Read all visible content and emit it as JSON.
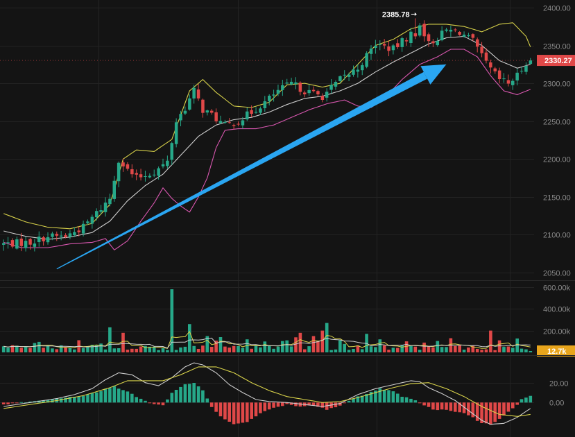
{
  "chart_data": [
    {
      "type": "candlestick",
      "pane": "price",
      "ylim": [
        2040,
        2410
      ],
      "yticks": [
        "2050.00",
        "2100.00",
        "2150.00",
        "2200.00",
        "2250.00",
        "2300.00",
        "2350.00",
        "2400.00"
      ],
      "yticks_values": [
        2050,
        2100,
        2150,
        2200,
        2250,
        2300,
        2350,
        2400
      ],
      "x_count": 120,
      "anchors_close": [
        [
          0,
          2088
        ],
        [
          6,
          2090
        ],
        [
          10,
          2098
        ],
        [
          14,
          2098
        ],
        [
          18,
          2110
        ],
        [
          22,
          2135
        ],
        [
          24,
          2148
        ],
        [
          26,
          2200
        ],
        [
          28,
          2185
        ],
        [
          30,
          2175
        ],
        [
          34,
          2183
        ],
        [
          37,
          2196
        ],
        [
          39,
          2250
        ],
        [
          41,
          2268
        ],
        [
          43,
          2290
        ],
        [
          45,
          2265
        ],
        [
          47,
          2258
        ],
        [
          50,
          2244
        ],
        [
          53,
          2250
        ],
        [
          56,
          2262
        ],
        [
          59,
          2275
        ],
        [
          62,
          2290
        ],
        [
          65,
          2300
        ],
        [
          68,
          2290
        ],
        [
          72,
          2283
        ],
        [
          76,
          2305
        ],
        [
          80,
          2320
        ],
        [
          84,
          2352
        ],
        [
          88,
          2345
        ],
        [
          92,
          2365
        ],
        [
          94,
          2380
        ],
        [
          96,
          2352
        ],
        [
          98,
          2360
        ],
        [
          100,
          2370
        ],
        [
          103,
          2368
        ],
        [
          106,
          2355
        ],
        [
          108,
          2335
        ],
        [
          110,
          2318
        ],
        [
          112,
          2305
        ],
        [
          114,
          2300
        ],
        [
          116,
          2310
        ],
        [
          118,
          2328
        ],
        [
          119,
          2330
        ]
      ],
      "series": [
        {
          "name": "",
          "kind": "bollinger-upper",
          "color": "#d8d24a",
          "anchors": [
            [
              0,
              2128
            ],
            [
              5,
              2117
            ],
            [
              10,
              2110
            ],
            [
              15,
              2108
            ],
            [
              20,
              2115
            ],
            [
              24,
              2140
            ],
            [
              27,
              2200
            ],
            [
              30,
              2212
            ],
            [
              34,
              2210
            ],
            [
              38,
              2226
            ],
            [
              42,
              2290
            ],
            [
              45,
              2305
            ],
            [
              48,
              2288
            ],
            [
              52,
              2270
            ],
            [
              56,
              2268
            ],
            [
              60,
              2275
            ],
            [
              64,
              2298
            ],
            [
              68,
              2300
            ],
            [
              72,
              2295
            ],
            [
              76,
              2300
            ],
            [
              80,
              2325
            ],
            [
              84,
              2350
            ],
            [
              88,
              2358
            ],
            [
              92,
              2372
            ],
            [
              96,
              2378
            ],
            [
              100,
              2378
            ],
            [
              104,
              2375
            ],
            [
              108,
              2368
            ],
            [
              112,
              2378
            ],
            [
              115,
              2380
            ],
            [
              118,
              2362
            ],
            [
              119,
              2348
            ]
          ]
        },
        {
          "name": "",
          "kind": "bollinger-middle",
          "color": "#cfcfcf",
          "anchors": [
            [
              0,
              2105
            ],
            [
              5,
              2098
            ],
            [
              10,
              2094
            ],
            [
              15,
              2097
            ],
            [
              20,
              2103
            ],
            [
              24,
              2118
            ],
            [
              28,
              2145
            ],
            [
              32,
              2165
            ],
            [
              36,
              2180
            ],
            [
              40,
              2205
            ],
            [
              44,
              2230
            ],
            [
              48,
              2245
            ],
            [
              52,
              2252
            ],
            [
              56,
              2255
            ],
            [
              60,
              2262
            ],
            [
              64,
              2272
            ],
            [
              68,
              2280
            ],
            [
              72,
              2283
            ],
            [
              76,
              2290
            ],
            [
              80,
              2300
            ],
            [
              84,
              2315
            ],
            [
              88,
              2328
            ],
            [
              92,
              2340
            ],
            [
              96,
              2352
            ],
            [
              100,
              2360
            ],
            [
              104,
              2362
            ],
            [
              108,
              2350
            ],
            [
              112,
              2330
            ],
            [
              116,
              2320
            ],
            [
              119,
              2325
            ]
          ]
        },
        {
          "name": "",
          "kind": "bollinger-lower",
          "color": "#d957b0",
          "anchors": [
            [
              0,
              2090
            ],
            [
              4,
              2083
            ],
            [
              10,
              2083
            ],
            [
              15,
              2088
            ],
            [
              20,
              2090
            ],
            [
              23,
              2095
            ],
            [
              25,
              2080
            ],
            [
              28,
              2092
            ],
            [
              31,
              2118
            ],
            [
              34,
              2142
            ],
            [
              36,
              2162
            ],
            [
              38,
              2148
            ],
            [
              40,
              2138
            ],
            [
              42,
              2130
            ],
            [
              44,
              2150
            ],
            [
              46,
              2175
            ],
            [
              48,
              2215
            ],
            [
              50,
              2238
            ],
            [
              53,
              2240
            ],
            [
              57,
              2240
            ],
            [
              61,
              2245
            ],
            [
              65,
              2255
            ],
            [
              69,
              2265
            ],
            [
              73,
              2273
            ],
            [
              77,
              2278
            ],
            [
              80,
              2270
            ],
            [
              83,
              2268
            ],
            [
              86,
              2280
            ],
            [
              90,
              2305
            ],
            [
              94,
              2325
            ],
            [
              98,
              2335
            ],
            [
              101,
              2345
            ],
            [
              104,
              2345
            ],
            [
              107,
              2335
            ],
            [
              110,
              2310
            ],
            [
              113,
              2290
            ],
            [
              116,
              2285
            ],
            [
              119,
              2292
            ]
          ]
        }
      ],
      "annotations": [
        {
          "type": "high-label",
          "text": "2385.78",
          "x_index": 93,
          "value": 2385.78
        },
        {
          "type": "price-tag",
          "text": "2330.27",
          "value": 2330.27,
          "color": "#e04848"
        },
        {
          "type": "trend-arrow",
          "color": "#2aa6f2",
          "from": [
            12,
            2055
          ],
          "to": [
            100,
            2325
          ]
        }
      ]
    },
    {
      "type": "bar",
      "pane": "volume",
      "ylim": [
        0,
        650000
      ],
      "yticks": [
        "200.00k",
        "400.00k",
        "600.00k"
      ],
      "yticks_values": [
        200000,
        400000,
        600000
      ],
      "spikes": [
        [
          24,
          230000
        ],
        [
          27,
          180000
        ],
        [
          38,
          580000
        ],
        [
          42,
          260000
        ],
        [
          46,
          150000
        ],
        [
          49,
          140000
        ],
        [
          55,
          120000
        ],
        [
          59,
          100000
        ],
        [
          64,
          110000
        ],
        [
          67,
          180000
        ],
        [
          70,
          150000
        ],
        [
          72,
          200000
        ],
        [
          73,
          270000
        ],
        [
          76,
          110000
        ],
        [
          82,
          170000
        ],
        [
          85,
          120000
        ],
        [
          90,
          70000
        ],
        [
          95,
          90000
        ],
        [
          101,
          130000
        ],
        [
          106,
          60000
        ],
        [
          110,
          200000
        ],
        [
          112,
          110000
        ]
      ],
      "series": [
        {
          "name": "",
          "kind": "volume-ma-fast",
          "color": "#d8d24a"
        },
        {
          "name": "",
          "kind": "volume-ma-slow",
          "color": "#cfcfcf"
        }
      ],
      "annotations": [
        {
          "type": "price-tag",
          "text": "12.7k",
          "value": 12700,
          "color": "#e8a51c"
        }
      ]
    },
    {
      "type": "bar",
      "pane": "macd",
      "ylim": [
        -32,
        45
      ],
      "yticks": [
        "0.00",
        "20.00"
      ],
      "yticks_values": [
        0,
        20
      ],
      "histogram_anchors": [
        [
          0,
          -2
        ],
        [
          6,
          1
        ],
        [
          10,
          3
        ],
        [
          14,
          5
        ],
        [
          18,
          7
        ],
        [
          22,
          12
        ],
        [
          25,
          16
        ],
        [
          27,
          13
        ],
        [
          30,
          6
        ],
        [
          33,
          -1
        ],
        [
          36,
          -3
        ],
        [
          38,
          10
        ],
        [
          41,
          18
        ],
        [
          43,
          20
        ],
        [
          45,
          12
        ],
        [
          47,
          -4
        ],
        [
          49,
          -14
        ],
        [
          52,
          -22
        ],
        [
          55,
          -20
        ],
        [
          58,
          -11
        ],
        [
          61,
          -5
        ],
        [
          64,
          -2
        ],
        [
          67,
          -4
        ],
        [
          70,
          -3
        ],
        [
          73,
          -7
        ],
        [
          76,
          -3
        ],
        [
          79,
          4
        ],
        [
          82,
          9
        ],
        [
          85,
          14
        ],
        [
          88,
          11
        ],
        [
          90,
          6
        ],
        [
          92,
          4
        ],
        [
          94,
          0
        ],
        [
          96,
          -5
        ],
        [
          98,
          -8
        ],
        [
          100,
          -7
        ],
        [
          102,
          -9
        ],
        [
          104,
          -11
        ],
        [
          106,
          -15
        ],
        [
          108,
          -21
        ],
        [
          110,
          -22
        ],
        [
          112,
          -17
        ],
        [
          114,
          -9
        ],
        [
          116,
          -2
        ],
        [
          117,
          4
        ],
        [
          119,
          7
        ]
      ],
      "series": [
        {
          "name": "",
          "kind": "macd-line",
          "color": "#cfcfcf",
          "anchors": [
            [
              0,
              -4
            ],
            [
              6,
              0
            ],
            [
              12,
              4
            ],
            [
              16,
              8
            ],
            [
              20,
              14
            ],
            [
              23,
              23
            ],
            [
              26,
              30
            ],
            [
              29,
              28
            ],
            [
              32,
              20
            ],
            [
              35,
              17
            ],
            [
              38,
              25
            ],
            [
              41,
              36
            ],
            [
              43,
              40
            ],
            [
              45,
              38
            ],
            [
              48,
              30
            ],
            [
              51,
              18
            ],
            [
              54,
              10
            ],
            [
              57,
              3
            ],
            [
              60,
              1
            ],
            [
              64,
              0
            ],
            [
              68,
              -2
            ],
            [
              72,
              -4
            ],
            [
              76,
              -1
            ],
            [
              80,
              8
            ],
            [
              84,
              14
            ],
            [
              88,
              18
            ],
            [
              92,
              22
            ],
            [
              94,
              21
            ],
            [
              96,
              15
            ],
            [
              99,
              9
            ],
            [
              102,
              2
            ],
            [
              105,
              -8
            ],
            [
              108,
              -18
            ],
            [
              110,
              -22
            ],
            [
              113,
              -21
            ],
            [
              116,
              -15
            ],
            [
              119,
              -6
            ]
          ]
        },
        {
          "name": "",
          "kind": "signal-line",
          "color": "#d8d24a",
          "anchors": [
            [
              0,
              -6
            ],
            [
              6,
              -2
            ],
            [
              12,
              2
            ],
            [
              18,
              7
            ],
            [
              24,
              15
            ],
            [
              28,
              22
            ],
            [
              32,
              22
            ],
            [
              36,
              22
            ],
            [
              40,
              28
            ],
            [
              44,
              36
            ],
            [
              48,
              36
            ],
            [
              52,
              30
            ],
            [
              56,
              20
            ],
            [
              60,
              12
            ],
            [
              64,
              6
            ],
            [
              68,
              3
            ],
            [
              72,
              0
            ],
            [
              76,
              1
            ],
            [
              80,
              5
            ],
            [
              84,
              10
            ],
            [
              88,
              15
            ],
            [
              92,
              19
            ],
            [
              96,
              20
            ],
            [
              100,
              14
            ],
            [
              104,
              6
            ],
            [
              108,
              -4
            ],
            [
              112,
              -12
            ],
            [
              116,
              -14
            ],
            [
              119,
              -12
            ]
          ]
        }
      ]
    }
  ]
}
